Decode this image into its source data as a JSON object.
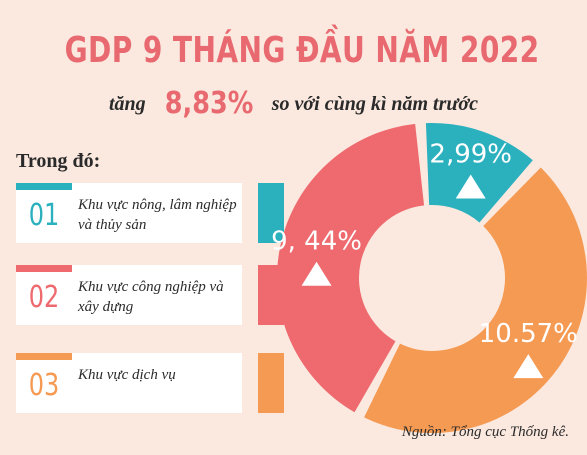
{
  "title": "GDP 9 THÁNG ĐẦU NĂM 2022",
  "subtitle": {
    "prefix": "tăng",
    "value": "8,83%",
    "suffix": "so với cùng kì năm trước"
  },
  "breakdown_heading": "Trong đó:",
  "sectors": [
    {
      "num": "01",
      "label": "Khu vực nông, lâm nghiệp và thủy sản",
      "color": "#2bb0be"
    },
    {
      "num": "02",
      "label": "Khu vực công nghiệp và xây dựng",
      "color": "#ee6a6e"
    },
    {
      "num": "03",
      "label": "Khu vực dịch vụ",
      "color": "#f59a53"
    }
  ],
  "source": "Nguồn: Tổng cục Thống kê.",
  "chart_data": {
    "type": "pie",
    "categories": [
      "Khu vực công nghiệp và xây dựng",
      "Khu vực nông, lâm nghiệp và thủy sản",
      "Khu vực dịch vụ"
    ],
    "values": [
      9.44,
      2.99,
      10.57
    ],
    "value_labels": [
      "9, 44%",
      "2,99%",
      "10.57%"
    ],
    "colors": [
      "#ee6a6e",
      "#2bb0be",
      "#f59a53"
    ],
    "title": "",
    "legend": "left"
  }
}
